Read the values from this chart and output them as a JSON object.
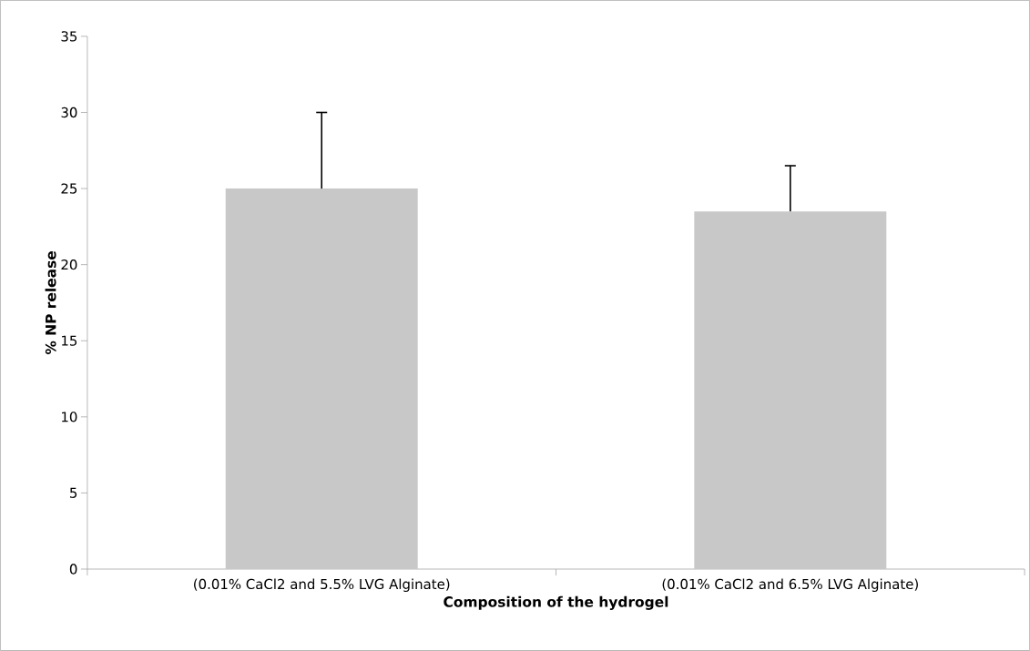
{
  "chart_data": {
    "type": "bar",
    "xlabel": "Composition of the hydrogel",
    "ylabel": "% NP release",
    "categories": [
      "(0.01% CaCl2 and 5.5% LVG Alginate)",
      "(0.01% CaCl2 and 6.5% LVG Alginate)"
    ],
    "values": [
      25,
      23.5
    ],
    "color": "#c8c8c8",
    "errors": [
      [
        25,
        30
      ],
      [
        23.5,
        26.5
      ]
    ],
    "ylim": [
      0,
      35
    ],
    "yticks": [
      0,
      5,
      10,
      15,
      20,
      25,
      30,
      35
    ],
    "grid": false
  }
}
